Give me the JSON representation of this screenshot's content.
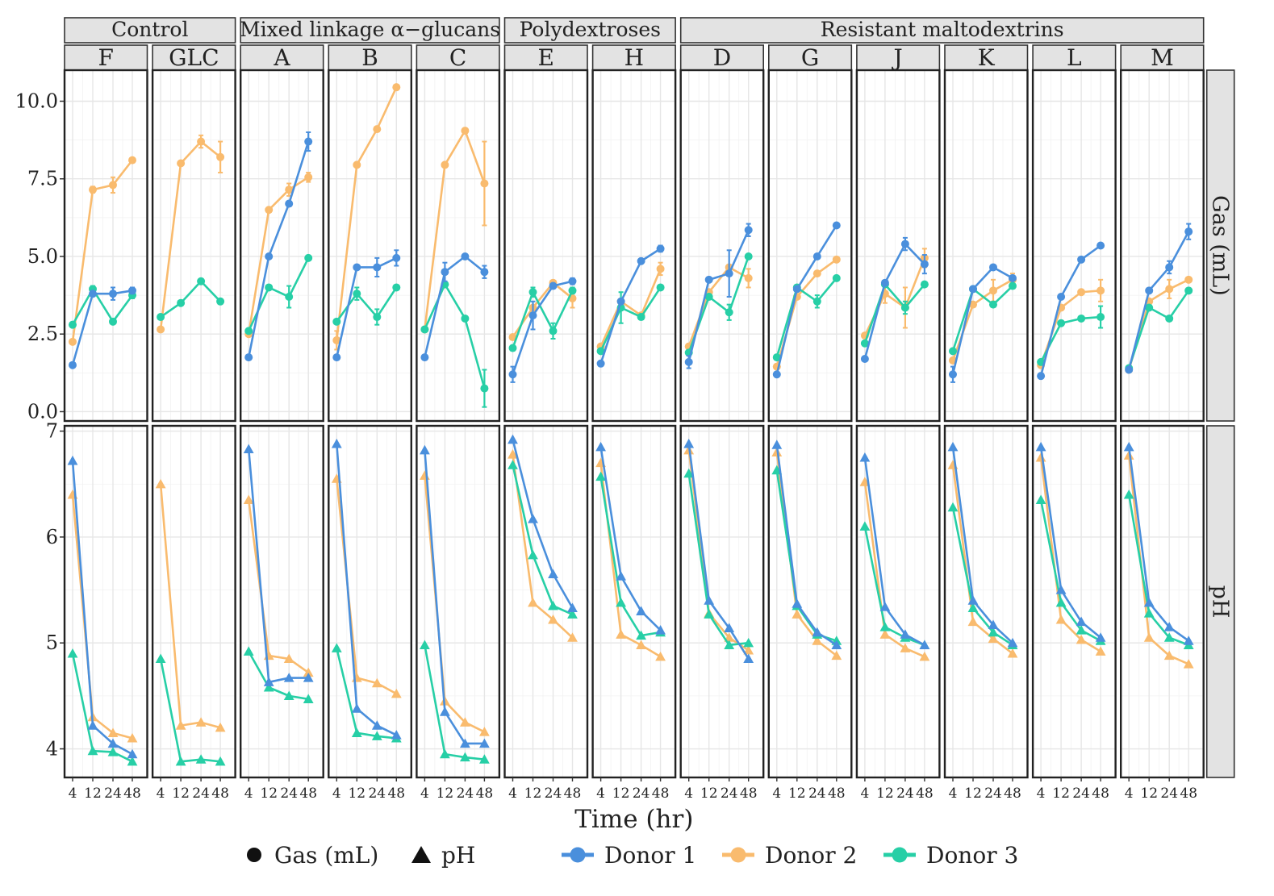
{
  "chart_data": {
    "type": "line",
    "xlabel": "Time (hr)",
    "x": [
      4,
      12,
      24,
      48
    ],
    "x_tick_labels": [
      "4",
      "12",
      "24",
      "48"
    ],
    "rows": [
      {
        "key": "gas",
        "label": "Gas (mL)",
        "ylim": [
          -0.3,
          11.0
        ],
        "ticks": [
          0.0,
          2.5,
          5.0,
          7.5,
          10.0
        ],
        "tick_labels": [
          "0.0",
          "2.5",
          "5.0",
          "7.5",
          "10.0"
        ],
        "marker": "circle"
      },
      {
        "key": "ph",
        "label": "pH",
        "ylim": [
          3.73,
          7.05
        ],
        "ticks": [
          4,
          5,
          6,
          7
        ],
        "tick_labels": [
          "4",
          "5",
          "6",
          "7"
        ],
        "marker": "triangle"
      }
    ],
    "groups": [
      {
        "label": "Control",
        "panels": [
          "F",
          "GLC"
        ]
      },
      {
        "label": "Mixed linkage α−glucans",
        "panels": [
          "A",
          "B",
          "C"
        ]
      },
      {
        "label": "Polydextroses",
        "panels": [
          "E",
          "H"
        ]
      },
      {
        "label": "Resistant maltodextrins",
        "panels": [
          "D",
          "G",
          "J",
          "K",
          "L",
          "M"
        ]
      }
    ],
    "series_colors": {
      "Donor 1": "#4a8fdc",
      "Donor 2": "#f9bb6e",
      "Donor 3": "#27cfa6"
    },
    "series_order": [
      "Donor 2",
      "Donor 3",
      "Donor 1"
    ],
    "panels": [
      {
        "name": "F",
        "gas": {
          "Donor 1": [
            1.5,
            3.8,
            3.8,
            3.9
          ],
          "Donor 2": [
            2.25,
            7.15,
            7.3,
            8.1
          ],
          "Donor 3": [
            2.8,
            3.95,
            2.9,
            3.75
          ]
        },
        "gas_err": {
          "Donor 1": [
            0.05,
            0.05,
            0.2,
            0.1
          ],
          "Donor 2": [
            0.05,
            0.1,
            0.25,
            0.05
          ],
          "Donor 3": [
            0.05,
            0.1,
            0.05,
            0.1
          ]
        },
        "ph": {
          "Donor 1": [
            6.72,
            4.22,
            4.05,
            3.95
          ],
          "Donor 2": [
            6.4,
            4.3,
            4.15,
            4.1
          ],
          "Donor 3": [
            4.9,
            3.98,
            3.97,
            3.88
          ]
        }
      },
      {
        "name": "GLC",
        "gas": {
          "Donor 2": [
            2.65,
            8.0,
            8.7,
            8.2
          ],
          "Donor 3": [
            3.05,
            3.5,
            4.2,
            3.55
          ]
        },
        "gas_err": {
          "Donor 2": [
            0.05,
            0.05,
            0.2,
            0.5
          ],
          "Donor 3": [
            0.05,
            0.05,
            0.05,
            0.05
          ]
        },
        "ph": {
          "Donor 2": [
            6.5,
            4.22,
            4.25,
            4.2
          ],
          "Donor 3": [
            4.85,
            3.88,
            3.9,
            3.88
          ]
        }
      },
      {
        "name": "A",
        "gas": {
          "Donor 1": [
            1.75,
            5.0,
            6.7,
            8.7
          ],
          "Donor 2": [
            2.5,
            6.5,
            7.15,
            7.55
          ],
          "Donor 3": [
            2.6,
            4.0,
            3.7,
            4.95
          ]
        },
        "gas_err": {
          "Donor 1": [
            0.05,
            0.05,
            0.05,
            0.3
          ],
          "Donor 2": [
            0.05,
            0.05,
            0.2,
            0.15
          ],
          "Donor 3": [
            0.05,
            0.05,
            0.35,
            0.05
          ]
        },
        "ph": {
          "Donor 1": [
            6.83,
            4.63,
            4.67,
            4.67
          ],
          "Donor 2": [
            6.35,
            4.88,
            4.85,
            4.72
          ],
          "Donor 3": [
            4.92,
            4.58,
            4.5,
            4.47
          ]
        }
      },
      {
        "name": "B",
        "gas": {
          "Donor 1": [
            1.75,
            4.65,
            4.65,
            4.95
          ],
          "Donor 2": [
            2.3,
            7.95,
            9.1,
            10.45
          ],
          "Donor 3": [
            2.9,
            3.8,
            3.05,
            4.0
          ]
        },
        "gas_err": {
          "Donor 1": [
            0.05,
            0.05,
            0.3,
            0.25
          ],
          "Donor 2": [
            0.3,
            0.05,
            0.05,
            0.05
          ],
          "Donor 3": [
            0.05,
            0.2,
            0.25,
            0.05
          ]
        },
        "ph": {
          "Donor 1": [
            6.88,
            4.38,
            4.22,
            4.13
          ],
          "Donor 2": [
            6.55,
            4.67,
            4.62,
            4.52
          ],
          "Donor 3": [
            4.95,
            4.15,
            4.12,
            4.1
          ]
        }
      },
      {
        "name": "C",
        "gas": {
          "Donor 1": [
            1.75,
            4.5,
            5.0,
            4.5
          ],
          "Donor 2": [
            2.65,
            7.95,
            9.05,
            7.35
          ],
          "Donor 3": [
            2.65,
            4.1,
            3.0,
            0.75
          ]
        },
        "gas_err": {
          "Donor 1": [
            0.05,
            0.3,
            0.05,
            0.2
          ],
          "Donor 2": [
            0.05,
            0.05,
            0.05,
            1.35
          ],
          "Donor 3": [
            0.05,
            0.05,
            0.05,
            0.6
          ]
        },
        "ph": {
          "Donor 1": [
            6.82,
            4.35,
            4.05,
            4.05
          ],
          "Donor 2": [
            6.58,
            4.45,
            4.25,
            4.16
          ],
          "Donor 3": [
            4.98,
            3.95,
            3.92,
            3.9
          ]
        }
      },
      {
        "name": "E",
        "gas": {
          "Donor 1": [
            1.2,
            3.1,
            4.05,
            4.2
          ],
          "Donor 2": [
            2.4,
            3.35,
            4.15,
            3.65
          ],
          "Donor 3": [
            2.05,
            3.85,
            2.6,
            3.9
          ]
        },
        "gas_err": {
          "Donor 1": [
            0.25,
            0.45,
            0.05,
            0.1
          ],
          "Donor 2": [
            0.05,
            0.05,
            0.05,
            0.3
          ],
          "Donor 3": [
            0.05,
            0.15,
            0.25,
            0.1
          ]
        },
        "ph": {
          "Donor 1": [
            6.92,
            6.17,
            5.65,
            5.33
          ],
          "Donor 2": [
            6.78,
            5.38,
            5.22,
            5.05
          ],
          "Donor 3": [
            6.68,
            5.83,
            5.35,
            5.27
          ]
        }
      },
      {
        "name": "H",
        "gas": {
          "Donor 1": [
            1.55,
            3.55,
            4.85,
            5.25
          ],
          "Donor 2": [
            2.1,
            3.55,
            3.1,
            4.6
          ],
          "Donor 3": [
            1.95,
            3.35,
            3.05,
            4.0
          ]
        },
        "gas_err": {
          "Donor 1": [
            0.05,
            0.05,
            0.05,
            0.1
          ],
          "Donor 2": [
            0.05,
            0.05,
            0.05,
            0.2
          ],
          "Donor 3": [
            0.05,
            0.5,
            0.05,
            0.05
          ]
        },
        "ph": {
          "Donor 1": [
            6.85,
            5.63,
            5.3,
            5.12
          ],
          "Donor 2": [
            6.7,
            5.08,
            4.98,
            4.87
          ],
          "Donor 3": [
            6.57,
            5.38,
            5.07,
            5.1
          ]
        }
      },
      {
        "name": "D",
        "gas": {
          "Donor 1": [
            1.6,
            4.25,
            4.45,
            5.85
          ],
          "Donor 2": [
            2.1,
            3.85,
            4.65,
            4.3
          ],
          "Donor 3": [
            1.9,
            3.7,
            3.2,
            5.0
          ]
        },
        "gas_err": {
          "Donor 1": [
            0.2,
            0.05,
            0.75,
            0.2
          ],
          "Donor 2": [
            0.05,
            0.05,
            0.05,
            0.3
          ],
          "Donor 3": [
            0.05,
            0.05,
            0.25,
            0.05
          ]
        },
        "ph": {
          "Donor 1": [
            6.88,
            5.4,
            5.14,
            4.85
          ],
          "Donor 2": [
            6.82,
            5.28,
            5.05,
            4.93
          ],
          "Donor 3": [
            6.6,
            5.27,
            4.98,
            5.0
          ]
        }
      },
      {
        "name": "G",
        "gas": {
          "Donor 1": [
            1.2,
            3.95,
            5.0,
            6.0
          ],
          "Donor 2": [
            1.45,
            3.7,
            4.45,
            4.9
          ],
          "Donor 3": [
            1.75,
            4.0,
            3.55,
            4.3
          ]
        },
        "gas_err": {
          "Donor 1": [
            0.05,
            0.05,
            0.05,
            0.05
          ],
          "Donor 2": [
            0.05,
            0.05,
            0.05,
            0.05
          ],
          "Donor 3": [
            0.05,
            0.05,
            0.2,
            0.05
          ]
        },
        "ph": {
          "Donor 1": [
            6.87,
            5.37,
            5.1,
            4.98
          ],
          "Donor 2": [
            6.8,
            5.27,
            5.02,
            4.88
          ],
          "Donor 3": [
            6.63,
            5.35,
            5.08,
            5.02
          ]
        }
      },
      {
        "name": "J",
        "gas": {
          "Donor 1": [
            1.7,
            4.15,
            5.4,
            4.75
          ],
          "Donor 2": [
            2.45,
            3.8,
            3.35,
            4.95
          ],
          "Donor 3": [
            2.2,
            4.1,
            3.35,
            4.1
          ]
        },
        "gas_err": {
          "Donor 1": [
            0.05,
            0.05,
            0.2,
            0.3
          ],
          "Donor 2": [
            0.05,
            0.3,
            0.65,
            0.3
          ],
          "Donor 3": [
            0.05,
            0.05,
            0.2,
            0.05
          ]
        },
        "ph": {
          "Donor 1": [
            6.75,
            5.34,
            5.08,
            4.98
          ],
          "Donor 2": [
            6.52,
            5.08,
            4.95,
            4.87
          ],
          "Donor 3": [
            6.1,
            5.15,
            5.05,
            4.98
          ]
        }
      },
      {
        "name": "K",
        "gas": {
          "Donor 1": [
            1.2,
            3.95,
            4.65,
            4.3
          ],
          "Donor 2": [
            1.65,
            3.45,
            3.9,
            4.25
          ],
          "Donor 3": [
            1.95,
            3.95,
            3.45,
            4.05
          ]
        },
        "gas_err": {
          "Donor 1": [
            0.25,
            0.05,
            0.05,
            0.05
          ],
          "Donor 2": [
            0.05,
            0.05,
            0.35,
            0.2
          ],
          "Donor 3": [
            0.05,
            0.05,
            0.05,
            0.05
          ]
        },
        "ph": {
          "Donor 1": [
            6.85,
            5.4,
            5.17,
            5.0
          ],
          "Donor 2": [
            6.68,
            5.2,
            5.04,
            4.9
          ],
          "Donor 3": [
            6.28,
            5.33,
            5.1,
            4.98
          ]
        }
      },
      {
        "name": "L",
        "gas": {
          "Donor 1": [
            1.15,
            3.7,
            4.9,
            5.35
          ],
          "Donor 2": [
            1.5,
            3.35,
            3.85,
            3.9
          ],
          "Donor 3": [
            1.6,
            2.85,
            3.0,
            3.05
          ]
        },
        "gas_err": {
          "Donor 1": [
            0.05,
            0.05,
            0.05,
            0.05
          ],
          "Donor 2": [
            0.05,
            0.05,
            0.05,
            0.35
          ],
          "Donor 3": [
            0.05,
            0.05,
            0.05,
            0.35
          ]
        },
        "ph": {
          "Donor 1": [
            6.85,
            5.5,
            5.2,
            5.05
          ],
          "Donor 2": [
            6.75,
            5.22,
            5.03,
            4.92
          ],
          "Donor 3": [
            6.35,
            5.38,
            5.12,
            5.02
          ]
        }
      },
      {
        "name": "M",
        "gas": {
          "Donor 1": [
            1.35,
            3.9,
            4.65,
            5.8
          ],
          "Donor 2": [
            1.35,
            3.55,
            3.95,
            4.25
          ],
          "Donor 3": [
            1.4,
            3.35,
            3.0,
            3.9
          ]
        },
        "gas_err": {
          "Donor 1": [
            0.05,
            0.05,
            0.2,
            0.25
          ],
          "Donor 2": [
            0.05,
            0.05,
            0.3,
            0.05
          ],
          "Donor 3": [
            0.05,
            0.05,
            0.05,
            0.05
          ]
        },
        "ph": {
          "Donor 1": [
            6.85,
            5.38,
            5.15,
            5.02
          ],
          "Donor 2": [
            6.77,
            5.05,
            4.88,
            4.8
          ],
          "Donor 3": [
            6.4,
            5.28,
            5.05,
            4.98
          ]
        }
      }
    ],
    "legend": {
      "shape": [
        {
          "label": "Gas (mL)",
          "marker": "circle"
        },
        {
          "label": "pH",
          "marker": "triangle"
        }
      ],
      "color": [
        {
          "label": "Donor 1",
          "color": "#4a8fdc"
        },
        {
          "label": "Donor 2",
          "color": "#f9bb6e"
        },
        {
          "label": "Donor 3",
          "color": "#27cfa6"
        }
      ]
    }
  }
}
